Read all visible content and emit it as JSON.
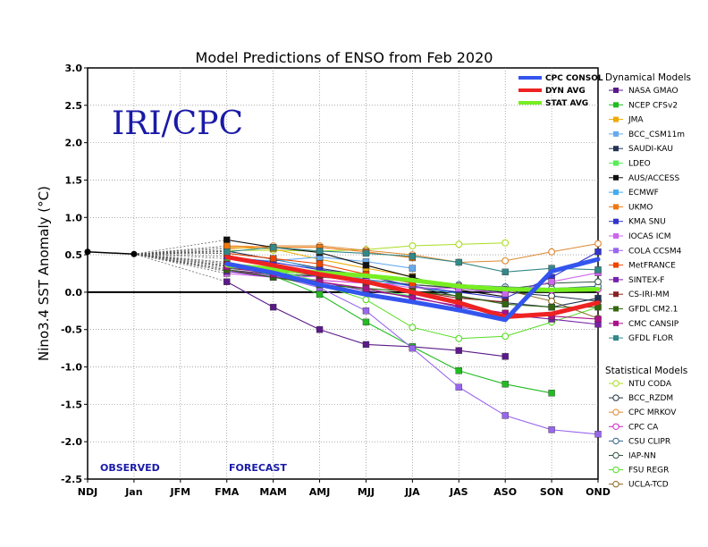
{
  "chart_data": {
    "type": "line",
    "title": "Model Predictions of ENSO from Feb 2020",
    "ylabel": "Nino3.4 SST Anomaly (°C)",
    "xlabel": "",
    "watermark": "IRI/CPC",
    "observed_label": "OBSERVED",
    "forecast_label": "FORECAST",
    "ylim": [
      -2.5,
      3.0
    ],
    "yticks": [
      "3.0",
      "2.5",
      "2.0",
      "1.5",
      "1.0",
      "0.5",
      "0.0",
      "-0.5",
      "-1.0",
      "-1.5",
      "-2.0",
      "-2.5"
    ],
    "categories": [
      "NDJ",
      "Jan",
      "JFM",
      "FMA",
      "MAM",
      "AMJ",
      "MJJ",
      "JJA",
      "JAS",
      "ASO",
      "SON",
      "OND"
    ],
    "grid": true,
    "observed": [
      0.54,
      0.51
    ],
    "averages": [
      {
        "name": "CPC CONSOL",
        "color": "#3355ee",
        "values": [
          null,
          null,
          null,
          0.38,
          0.26,
          0.1,
          -0.03,
          -0.13,
          -0.24,
          -0.37,
          0.28,
          0.44
        ]
      },
      {
        "name": "DYN AVG",
        "color": "#ee2222",
        "values": [
          null,
          null,
          null,
          0.47,
          0.36,
          0.24,
          0.14,
          0.0,
          -0.14,
          -0.33,
          -0.29,
          -0.14
        ]
      },
      {
        "name": "STAT AVG",
        "color": "#77ee22",
        "values": [
          null,
          null,
          null,
          0.36,
          0.31,
          0.26,
          0.22,
          0.16,
          0.08,
          0.04,
          0.03,
          0.04
        ]
      }
    ],
    "legend_dynamical_title": "Dynamical Models",
    "legend_statistical_title": "Statistical Models",
    "dynamical_models": [
      {
        "name": "NASA GMAO",
        "color": "#5a1a8a",
        "values": [
          null,
          null,
          null,
          0.14,
          -0.2,
          -0.5,
          -0.7,
          -0.73,
          -0.78,
          -0.86,
          null,
          null
        ]
      },
      {
        "name": "NCEP CFSv2",
        "color": "#22bb22",
        "values": [
          null,
          null,
          null,
          0.38,
          0.22,
          -0.03,
          -0.4,
          -0.73,
          -1.05,
          -1.23,
          -1.35,
          null
        ]
      },
      {
        "name": "JMA",
        "color": "#eeaa00",
        "values": [
          null,
          null,
          null,
          0.6,
          0.58,
          0.44,
          0.32,
          0.21,
          null,
          null,
          null,
          null
        ]
      },
      {
        "name": "BCC_CSM11m",
        "color": "#66aaee",
        "values": [
          null,
          null,
          null,
          0.45,
          0.42,
          0.47,
          0.41,
          0.32,
          null,
          null,
          null,
          null
        ]
      },
      {
        "name": "SAUDI-KAU",
        "color": "#223355",
        "values": [
          null,
          null,
          null,
          0.55,
          0.44,
          0.32,
          0.22,
          0.08,
          -0.06,
          -0.14,
          -0.2,
          -0.08
        ]
      },
      {
        "name": "LDEO",
        "color": "#55ee55",
        "values": [
          null,
          null,
          null,
          0.4,
          0.3,
          0.14,
          0.04,
          -0.05,
          null,
          null,
          null,
          null
        ]
      },
      {
        "name": "AUS/ACCESS",
        "color": "#111111",
        "values": [
          null,
          null,
          null,
          0.7,
          0.6,
          0.53,
          0.36,
          0.2,
          0.03,
          -0.06,
          null,
          null
        ]
      },
      {
        "name": "ECMWF",
        "color": "#44aaee",
        "values": [
          null,
          null,
          null,
          0.52,
          0.45,
          0.3,
          0.17,
          0.08,
          -0.02,
          null,
          null,
          null
        ]
      },
      {
        "name": "UKMO",
        "color": "#ee7711",
        "values": [
          null,
          null,
          null,
          0.62,
          0.6,
          0.6,
          0.54,
          0.46,
          null,
          null,
          null,
          null
        ]
      },
      {
        "name": "KMA SNU",
        "color": "#3333cc",
        "values": [
          null,
          null,
          null,
          0.48,
          0.4,
          0.3,
          0.22,
          0.08,
          0.0,
          -0.08,
          0.2,
          0.54
        ]
      },
      {
        "name": "IOCAS ICM",
        "color": "#cc66ee",
        "values": [
          null,
          null,
          null,
          0.25,
          0.2,
          0.21,
          0.14,
          0.06,
          0.05,
          -0.02,
          0.14,
          0.26
        ]
      },
      {
        "name": "COLA CCSM4",
        "color": "#9966ee",
        "values": [
          null,
          null,
          null,
          0.28,
          0.22,
          0.06,
          -0.25,
          -0.75,
          -1.27,
          -1.65,
          -1.84,
          -1.9
        ]
      },
      {
        "name": "MetFRANCE",
        "color": "#ee4400",
        "values": [
          null,
          null,
          null,
          0.52,
          0.45,
          0.38,
          0.24,
          0.12,
          null,
          null,
          null,
          null
        ]
      },
      {
        "name": "SINTEX-F",
        "color": "#7722aa",
        "values": [
          null,
          null,
          null,
          0.28,
          0.2,
          0.14,
          0.02,
          -0.06,
          -0.2,
          -0.3,
          -0.36,
          -0.43
        ]
      },
      {
        "name": "CS-IRI-MM",
        "color": "#882222",
        "values": [
          null,
          null,
          null,
          0.38,
          0.3,
          0.22,
          0.12,
          0.02,
          -0.08,
          -0.13,
          null,
          null
        ]
      },
      {
        "name": "GFDL CM2.1",
        "color": "#336611",
        "values": [
          null,
          null,
          null,
          0.3,
          0.2,
          0.1,
          0.05,
          0.01,
          -0.05,
          -0.16,
          -0.2,
          -0.2
        ]
      },
      {
        "name": "CMC CANSIP",
        "color": "#aa1188",
        "values": [
          null,
          null,
          null,
          0.34,
          0.24,
          0.14,
          0.05,
          -0.08,
          -0.18,
          -0.28,
          -0.32,
          -0.36
        ]
      },
      {
        "name": "GFDL FLOR",
        "color": "#338888",
        "values": [
          null,
          null,
          null,
          0.54,
          0.6,
          0.55,
          0.52,
          0.48,
          0.4,
          0.27,
          0.32,
          0.3
        ]
      }
    ],
    "statistical_models": [
      {
        "name": "NTU CODA",
        "color": "#aadd22",
        "values": [
          null,
          null,
          null,
          0.56,
          0.56,
          0.55,
          0.57,
          0.62,
          0.64,
          0.66,
          null,
          null
        ]
      },
      {
        "name": "BCC_RZDM",
        "color": "#223344",
        "values": [
          null,
          null,
          null,
          0.3,
          0.24,
          0.22,
          0.17,
          0.1,
          0.05,
          0.0,
          -0.05,
          -0.12
        ]
      },
      {
        "name": "CPC MRKOV",
        "color": "#dd8833",
        "values": [
          null,
          null,
          null,
          0.58,
          0.62,
          0.62,
          0.56,
          0.5,
          0.4,
          0.42,
          0.54,
          0.65
        ]
      },
      {
        "name": "CPC CA",
        "color": "#cc22cc",
        "values": [
          null,
          null,
          null,
          0.3,
          0.22,
          0.16,
          0.12,
          0.1,
          0.06,
          0.03,
          0.03,
          0.04
        ]
      },
      {
        "name": "CSU CLIPR",
        "color": "#336688",
        "values": [
          null,
          null,
          null,
          0.36,
          0.3,
          0.25,
          0.22,
          0.16,
          0.1,
          0.07,
          0.05,
          0.08
        ]
      },
      {
        "name": "IAP-NN",
        "color": "#335544",
        "values": [
          null,
          null,
          null,
          0.32,
          0.26,
          0.2,
          0.16,
          0.1,
          0.06,
          0.04,
          0.12,
          0.14
        ]
      },
      {
        "name": "FSU REGR",
        "color": "#55dd22",
        "values": [
          null,
          null,
          null,
          0.4,
          0.28,
          0.1,
          -0.1,
          -0.47,
          -0.62,
          -0.59,
          -0.4,
          -0.2
        ]
      },
      {
        "name": "UCLA-TCD",
        "color": "#886622",
        "values": [
          null,
          null,
          null,
          0.35,
          0.28,
          0.24,
          0.2,
          0.14,
          0.08,
          0.03,
          -0.12,
          -0.35
        ]
      }
    ]
  }
}
